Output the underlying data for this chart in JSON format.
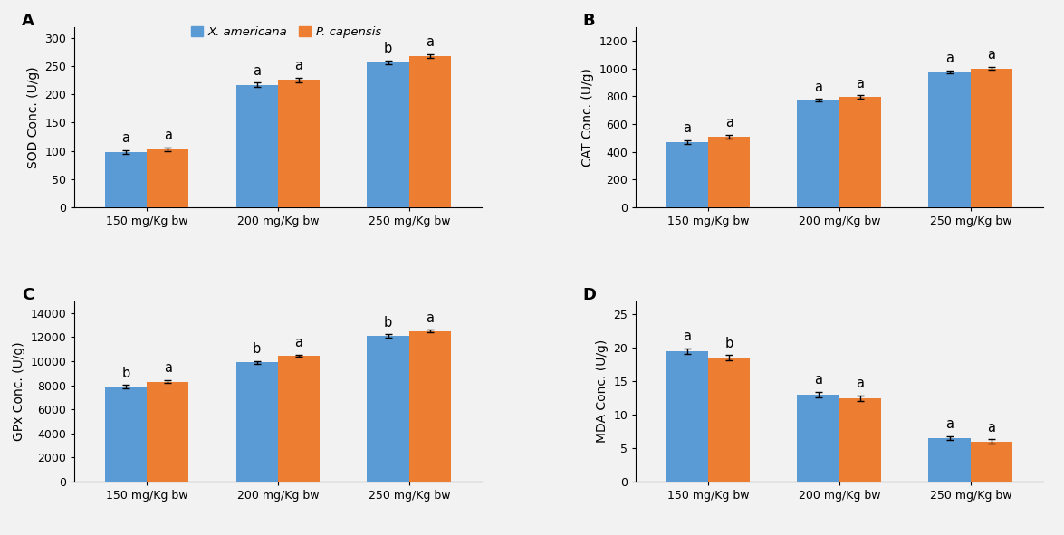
{
  "panels": [
    {
      "label": "A",
      "ylabel": "SOD Conc. (U/g)",
      "ylim": [
        0,
        320
      ],
      "yticks": [
        0,
        50,
        100,
        150,
        200,
        250,
        300
      ],
      "categories": [
        "150 mg/Kg bw",
        "200 mg/Kg bw",
        "250 mg/Kg bw"
      ],
      "blue_values": [
        98,
        217,
        257
      ],
      "orange_values": [
        103,
        226,
        268
      ],
      "blue_errors": [
        3,
        4,
        3
      ],
      "orange_errors": [
        3,
        4,
        3
      ],
      "blue_letters": [
        "a",
        "a",
        "b"
      ],
      "orange_letters": [
        "a",
        "a",
        "a"
      ],
      "show_legend": true
    },
    {
      "label": "B",
      "ylabel": "CAT Conc. (U/g)",
      "ylim": [
        0,
        1300
      ],
      "yticks": [
        0,
        200,
        400,
        600,
        800,
        1000,
        1200
      ],
      "categories": [
        "150 mg/Kg bw",
        "200 mg/Kg bw",
        "250 mg/Kg bw"
      ],
      "blue_values": [
        470,
        770,
        975
      ],
      "orange_values": [
        510,
        795,
        1000
      ],
      "blue_errors": [
        12,
        10,
        10
      ],
      "orange_errors": [
        12,
        10,
        12
      ],
      "blue_letters": [
        "a",
        "a",
        "a"
      ],
      "orange_letters": [
        "a",
        "a",
        "a"
      ],
      "show_legend": false
    },
    {
      "label": "C",
      "ylabel": "GPx Conc. (U/g)",
      "ylim": [
        0,
        15000
      ],
      "yticks": [
        0,
        2000,
        4000,
        6000,
        8000,
        10000,
        12000,
        14000
      ],
      "categories": [
        "150 mg/Kg bw",
        "200 mg/Kg bw",
        "250 mg/Kg bw"
      ],
      "blue_values": [
        7900,
        9900,
        12100
      ],
      "orange_values": [
        8300,
        10450,
        12500
      ],
      "blue_errors": [
        120,
        130,
        150
      ],
      "orange_errors": [
        130,
        110,
        100
      ],
      "blue_letters": [
        "b",
        "b",
        "b"
      ],
      "orange_letters": [
        "a",
        "a",
        "a"
      ],
      "show_legend": false
    },
    {
      "label": "D",
      "ylabel": "MDA Conc. (U/g)",
      "ylim": [
        0,
        27
      ],
      "yticks": [
        0,
        5,
        10,
        15,
        20,
        25
      ],
      "categories": [
        "150 mg/Kg bw",
        "200 mg/Kg bw",
        "250 mg/Kg bw"
      ],
      "blue_values": [
        19.5,
        13.0,
        6.5
      ],
      "orange_values": [
        18.5,
        12.5,
        6.0
      ],
      "blue_errors": [
        0.4,
        0.4,
        0.3
      ],
      "orange_errors": [
        0.4,
        0.4,
        0.3
      ],
      "blue_letters": [
        "a",
        "a",
        "a"
      ],
      "orange_letters": [
        "b",
        "a",
        "a"
      ],
      "show_legend": false
    }
  ],
  "blue_color": "#5B9BD5",
  "orange_color": "#ED7D31",
  "bar_width": 0.32,
  "legend_labels": [
    "X. americana",
    "P. capensis"
  ],
  "background_color": "#f2f2f2",
  "letter_fontsize": 10.5,
  "axis_label_fontsize": 10,
  "tick_fontsize": 9,
  "panel_label_fontsize": 13
}
